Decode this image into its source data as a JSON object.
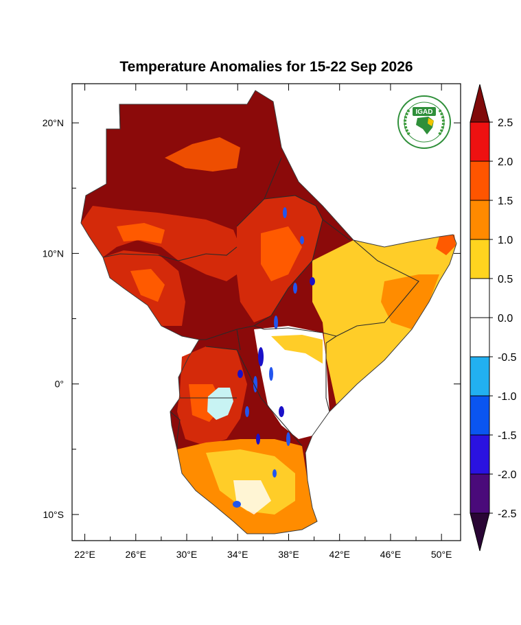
{
  "title": "Temperature Anomalies for 15-22 Sep 2026",
  "logo": {
    "text": "IGAD",
    "icon": "igad-africa-emblem"
  },
  "map": {
    "lon_range": [
      21,
      51.5
    ],
    "lat_range": [
      -12,
      23
    ],
    "x_ticks": [
      {
        "lon": 22,
        "label": "22°E"
      },
      {
        "lon": 26,
        "label": "26°E"
      },
      {
        "lon": 30,
        "label": "30°E"
      },
      {
        "lon": 34,
        "label": "34°E"
      },
      {
        "lon": 38,
        "label": "38°E"
      },
      {
        "lon": 42,
        "label": "42°E"
      },
      {
        "lon": 46,
        "label": "46°E"
      },
      {
        "lon": 50,
        "label": "50°E"
      }
    ],
    "y_ticks": [
      {
        "lat": 20,
        "label": "20°N"
      },
      {
        "lat": 10,
        "label": "10°N"
      },
      {
        "lat": 0,
        "label": "0°"
      },
      {
        "lat": -10,
        "label": "10°S"
      }
    ]
  },
  "colorbar": {
    "levels": [
      -2.5,
      -2.0,
      -1.5,
      -1.0,
      -0.5,
      0.0,
      0.5,
      1.0,
      1.5,
      2.0,
      2.5
    ],
    "labels": [
      "2.5",
      "2.0",
      "1.5",
      "1.0",
      "0.5",
      "0.0",
      "-0.5",
      "-1.0",
      "-1.5",
      "-2.0",
      "-2.5"
    ],
    "colors_top_to_bottom": [
      "#ee1111",
      "#ff5500",
      "#ff8a00",
      "#ffd41f",
      "#ffffff",
      "#ffffff",
      "#22b0f0",
      "#0a55f0",
      "#2a12e0",
      "#4a0a7a"
    ],
    "over_color": "#800a0a",
    "under_color": "#2a0535"
  },
  "palette": {
    "extreme_warm": "#8b0a0a",
    "very_warm": "#d42a0a",
    "warm": "#ff5a00",
    "mild_warm": "#ff8c00",
    "slight_warm": "#ffcd28",
    "neutral": "#ffffff",
    "lake": "#c8f3f3",
    "cool": "#2255ee",
    "very_cool": "#1a10c8"
  }
}
